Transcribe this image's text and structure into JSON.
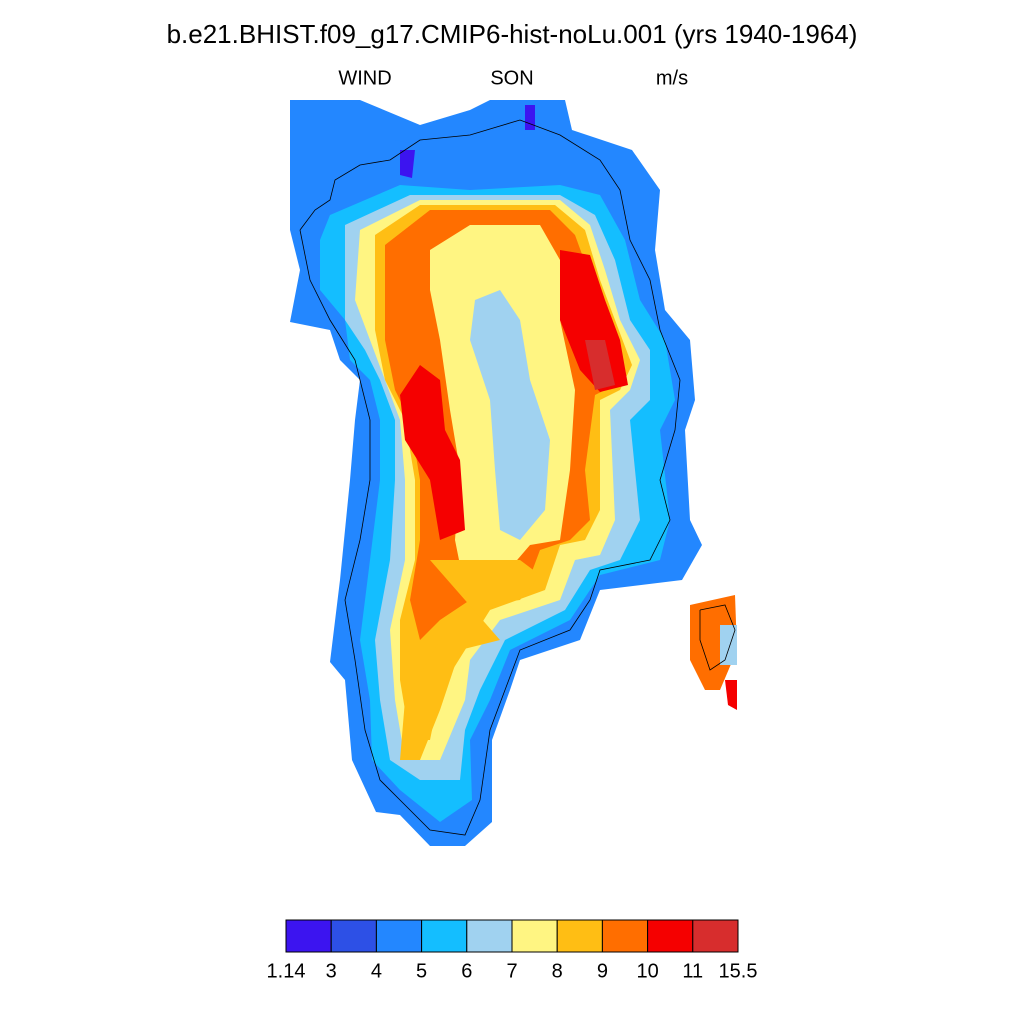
{
  "header": {
    "title": "b.e21.BHIST.f09_g17.CMIP6-hist-noLu.001 (yrs 1940-1964)",
    "left": "WIND",
    "center": "SON",
    "right": "m/s"
  },
  "colorbar": {
    "levels": [
      1.14,
      3,
      4,
      5,
      6,
      7,
      8,
      9,
      10,
      11,
      15.5
    ],
    "colors": [
      "#3c14f0",
      "#2d50e6",
      "#2387ff",
      "#14beff",
      "#a0d2f0",
      "#fff582",
      "#ffbe14",
      "#ff6e00",
      "#f50000",
      "#d72d2d"
    ]
  }
}
